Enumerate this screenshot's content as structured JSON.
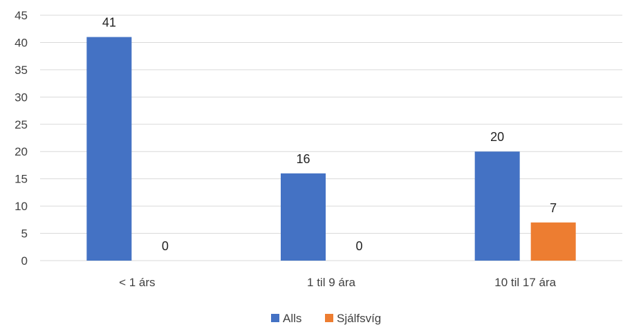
{
  "chart_data": {
    "type": "bar",
    "title": "",
    "xlabel": "",
    "ylabel": "",
    "categories": [
      "< 1 árs",
      "1 til 9 ára",
      "10 til 17 ára"
    ],
    "series": [
      {
        "name": "Alls",
        "values": [
          41,
          16,
          20
        ],
        "color": "#4472c4"
      },
      {
        "name": "Sjálfsvíg",
        "values": [
          0,
          0,
          7
        ],
        "color": "#ed7d31"
      }
    ],
    "ylim": [
      0,
      45
    ],
    "yticks": [
      0,
      5,
      10,
      15,
      20,
      25,
      30,
      35,
      40,
      45
    ],
    "grid": true,
    "legend_position": "bottom"
  }
}
